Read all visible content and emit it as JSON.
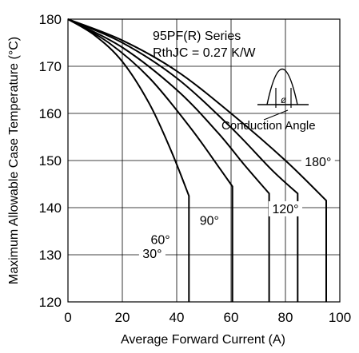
{
  "chart_data": {
    "type": "line",
    "title": "95PF(R) Series",
    "subtitle": "RthJC = 0.27 K/W",
    "xlabel": "Average Forward Current (A)",
    "ylabel": "Maximum Allowable Case Temperature (°C)",
    "xlim": [
      0,
      100
    ],
    "ylim": [
      120,
      180
    ],
    "x_ticks": [
      0,
      20,
      40,
      60,
      80,
      100
    ],
    "y_ticks": [
      120,
      130,
      140,
      150,
      160,
      170,
      180
    ],
    "grid": true,
    "inset_label": "Conduction Angle",
    "inset_symbol": "ø",
    "series": [
      {
        "name": "30°",
        "points": [
          [
            0,
            180
          ],
          [
            10,
            176.5
          ],
          [
            20,
            171
          ],
          [
            30,
            162
          ],
          [
            38,
            152
          ],
          [
            44.5,
            142.5
          ],
          [
            44.5,
            120
          ]
        ]
      },
      {
        "name": "60°",
        "points": [
          [
            0,
            180
          ],
          [
            15,
            175
          ],
          [
            30,
            167.5
          ],
          [
            45,
            157
          ],
          [
            55,
            149
          ],
          [
            60.5,
            144.5
          ],
          [
            60.5,
            120
          ]
        ]
      },
      {
        "name": "90°",
        "points": [
          [
            0,
            180
          ],
          [
            20,
            174
          ],
          [
            40,
            165
          ],
          [
            55,
            156
          ],
          [
            65,
            149
          ],
          [
            74,
            143
          ],
          [
            74,
            120
          ]
        ]
      },
      {
        "name": "120°",
        "points": [
          [
            0,
            180
          ],
          [
            20,
            175
          ],
          [
            40,
            167.5
          ],
          [
            60,
            157
          ],
          [
            75,
            148
          ],
          [
            84.5,
            143
          ],
          [
            84.5,
            120
          ]
        ]
      },
      {
        "name": "180°",
        "points": [
          [
            0,
            180
          ],
          [
            20,
            175.5
          ],
          [
            40,
            169
          ],
          [
            60,
            160
          ],
          [
            80,
            150
          ],
          [
            95,
            141.5
          ],
          [
            95,
            120
          ]
        ]
      }
    ]
  }
}
